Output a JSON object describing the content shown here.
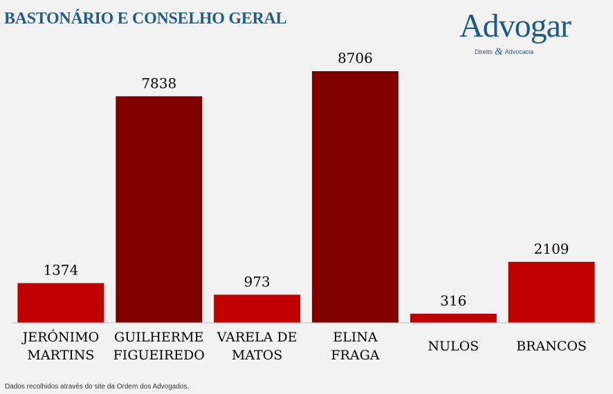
{
  "header": {
    "title": "BASTONÁRIO E CONSELHO GERAL"
  },
  "logo": {
    "wordmark": "Advogar",
    "sub_left": "Direito",
    "sub_amp": "&",
    "sub_right": "Advocacia"
  },
  "footnote": "Dados recolhidos através do site da Ordem dos Advogados.",
  "colors": {
    "bar_red": "#c00000",
    "bar_dark": "#800000",
    "title_blue": "#1f5f87"
  },
  "chart_data": {
    "type": "bar",
    "categories": [
      [
        "JERÓNIMO",
        "MARTINS"
      ],
      [
        "GUILHERME",
        "FIGUEIREDO"
      ],
      [
        "VARELA DE",
        "MATOS"
      ],
      [
        "ELINA",
        "FRAGA"
      ],
      [
        "NULOS"
      ],
      [
        "BRANCOS"
      ]
    ],
    "values": [
      1374,
      7838,
      973,
      8706,
      316,
      2109
    ],
    "bar_colors": [
      "#c00000",
      "#800000",
      "#c00000",
      "#800000",
      "#c00000",
      "#c00000"
    ],
    "title": "BASTONÁRIO E CONSELHO GERAL",
    "xlabel": "",
    "ylabel": "",
    "ylim": [
      0,
      8706
    ],
    "grid": false,
    "data_labels": true
  }
}
